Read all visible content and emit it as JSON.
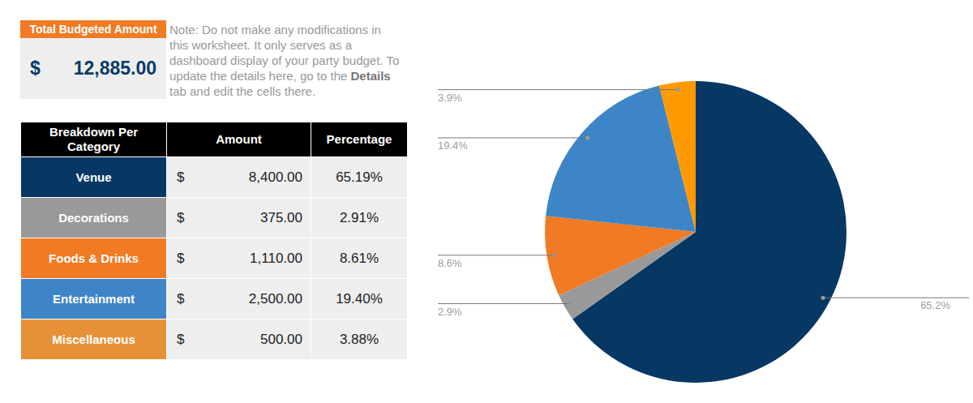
{
  "header": {
    "title": "Total Budgeted Amount",
    "currency": "$",
    "amount": "12,885.00"
  },
  "note": {
    "parts": [
      {
        "text": "Note: Do not make any modifications in this worksheet. It only serves as a dashboard display of your party budget. To update the details here, go to the ",
        "bold": false
      },
      {
        "text": "Details",
        "bold": true
      },
      {
        "text": " tab and edit the cells there.",
        "bold": false
      }
    ]
  },
  "table": {
    "columns": [
      "Breakdown Per Category",
      "Amount",
      "Percentage"
    ],
    "rows": [
      [
        "Venue",
        "$",
        "8,400.00",
        "65.19%"
      ],
      [
        "Decorations",
        "$",
        "375.00",
        "2.91%"
      ],
      [
        "Foods & Drinks",
        "$",
        "1,110.00",
        "8.61%"
      ],
      [
        "Entertainment",
        "$",
        "2,500.00",
        "19.40%"
      ],
      [
        "Miscellaneous",
        "$",
        "500.00",
        "3.88%"
      ]
    ]
  },
  "chart_data": {
    "type": "pie",
    "values": [
      65.2,
      2.9,
      8.6,
      19.4,
      3.9
    ],
    "value_labels": [
      "65.2%",
      "2.9%",
      "8.6%",
      "19.4%",
      "3.9%"
    ],
    "colors": [
      "#073763",
      "#999999",
      "#f07b24",
      "#3d85c6",
      "#ff9900"
    ],
    "data_labels": true
  }
}
